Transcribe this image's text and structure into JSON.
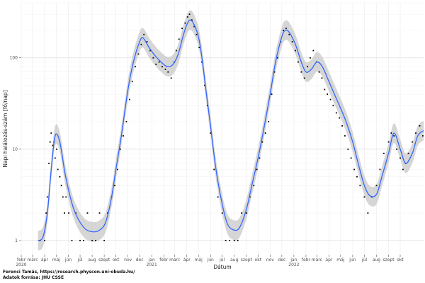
{
  "caption": {
    "author": "Ferenci Tamás, https://research.physcon.uni-obuda.hu/",
    "source": "Adatok forrása: JHU CSSE"
  },
  "chart_data": {
    "type": "scatter",
    "xlabel": "Dátum",
    "ylabel": "Napi halálozás-szám [fő/nap]",
    "yscale": "log",
    "ylim": [
      0.7,
      400
    ],
    "xlim": [
      "2020-02-01",
      "2022-11-30"
    ],
    "grid": true,
    "y_ticks": [
      1,
      10,
      100
    ],
    "x_ticks": [
      {
        "date": "2020-02-01",
        "label": "febr",
        "year": "2020"
      },
      {
        "date": "2020-03-01",
        "label": "márc"
      },
      {
        "date": "2020-04-01",
        "label": "ápr"
      },
      {
        "date": "2020-05-01",
        "label": "máj"
      },
      {
        "date": "2020-06-01",
        "label": "jún"
      },
      {
        "date": "2020-07-01",
        "label": "júl"
      },
      {
        "date": "2020-08-01",
        "label": "aug"
      },
      {
        "date": "2020-09-01",
        "label": "szept"
      },
      {
        "date": "2020-10-01",
        "label": "okt"
      },
      {
        "date": "2020-11-01",
        "label": "nov"
      },
      {
        "date": "2020-12-01",
        "label": "dec"
      },
      {
        "date": "2021-01-01",
        "label": "jan",
        "year": "2021"
      },
      {
        "date": "2021-02-01",
        "label": "febr"
      },
      {
        "date": "2021-03-01",
        "label": "márc"
      },
      {
        "date": "2021-04-01",
        "label": "ápr"
      },
      {
        "date": "2021-05-01",
        "label": "máj"
      },
      {
        "date": "2021-06-01",
        "label": "jún"
      },
      {
        "date": "2021-07-01",
        "label": "júl"
      },
      {
        "date": "2021-08-01",
        "label": "aug"
      },
      {
        "date": "2021-09-01",
        "label": "szept"
      },
      {
        "date": "2021-10-01",
        "label": "okt"
      },
      {
        "date": "2021-11-01",
        "label": "nov"
      },
      {
        "date": "2021-12-01",
        "label": "dec"
      },
      {
        "date": "2022-01-01",
        "label": "jan",
        "year": "2022"
      },
      {
        "date": "2022-02-01",
        "label": "febr"
      },
      {
        "date": "2022-03-01",
        "label": "márc"
      },
      {
        "date": "2022-04-01",
        "label": "ápr"
      },
      {
        "date": "2022-05-01",
        "label": "máj"
      },
      {
        "date": "2022-06-01",
        "label": "jún"
      },
      {
        "date": "2022-07-01",
        "label": "júl"
      },
      {
        "date": "2022-08-01",
        "label": "aug"
      },
      {
        "date": "2022-09-01",
        "label": "szept"
      },
      {
        "date": "2022-10-01",
        "label": "okt"
      }
    ],
    "trend": {
      "x": [
        "2020-03-15",
        "2020-03-28",
        "2020-04-08",
        "2020-04-18",
        "2020-04-28",
        "2020-05-10",
        "2020-05-25",
        "2020-06-15",
        "2020-07-10",
        "2020-08-01",
        "2020-08-20",
        "2020-09-05",
        "2020-09-20",
        "2020-10-01",
        "2020-10-15",
        "2020-11-01",
        "2020-11-15",
        "2020-12-01",
        "2020-12-10",
        "2020-12-25",
        "2021-01-10",
        "2021-01-25",
        "2021-02-10",
        "2021-02-25",
        "2021-03-10",
        "2021-03-22",
        "2021-04-01",
        "2021-04-10",
        "2021-04-20",
        "2021-05-01",
        "2021-05-10",
        "2021-05-20",
        "2021-06-01",
        "2021-06-15",
        "2021-07-01",
        "2021-07-15",
        "2021-08-01",
        "2021-08-15",
        "2021-09-01",
        "2021-09-15",
        "2021-10-01",
        "2021-10-15",
        "2021-11-01",
        "2021-11-15",
        "2021-12-01",
        "2021-12-10",
        "2021-12-20",
        "2022-01-05",
        "2022-01-20",
        "2022-02-01",
        "2022-02-15",
        "2022-03-01",
        "2022-03-15",
        "2022-04-01",
        "2022-04-15",
        "2022-05-01",
        "2022-05-15",
        "2022-06-01",
        "2022-06-15",
        "2022-07-01",
        "2022-07-15",
        "2022-08-01",
        "2022-08-15",
        "2022-09-01",
        "2022-09-15",
        "2022-10-01",
        "2022-10-15",
        "2022-11-01",
        "2022-11-15",
        "2022-11-30"
      ],
      "y": [
        1,
        1.1,
        2,
        6,
        14,
        12,
        5,
        2.2,
        1.4,
        1.25,
        1.3,
        1.6,
        3,
        6,
        14,
        45,
        90,
        150,
        165,
        130,
        105,
        90,
        80,
        85,
        110,
        170,
        230,
        260,
        230,
        170,
        100,
        45,
        18,
        6,
        2.5,
        1.5,
        1.3,
        1.4,
        2.2,
        4,
        8,
        16,
        40,
        90,
        170,
        200,
        190,
        140,
        90,
        70,
        75,
        90,
        80,
        55,
        40,
        28,
        20,
        12,
        7,
        4,
        3.1,
        3.2,
        5,
        9,
        15,
        10,
        7,
        9,
        14,
        16
      ]
    },
    "points": {
      "x": [
        "2020-03-20",
        "2020-04-01",
        "2020-04-05",
        "2020-04-08",
        "2020-04-12",
        "2020-04-15",
        "2020-04-18",
        "2020-04-22",
        "2020-04-25",
        "2020-04-28",
        "2020-05-02",
        "2020-05-05",
        "2020-05-10",
        "2020-05-14",
        "2020-05-18",
        "2020-05-22",
        "2020-05-26",
        "2020-06-02",
        "2020-06-10",
        "2020-06-20",
        "2020-07-01",
        "2020-07-10",
        "2020-07-20",
        "2020-08-01",
        "2020-08-10",
        "2020-08-20",
        "2020-09-01",
        "2020-09-10",
        "2020-09-20",
        "2020-09-28",
        "2020-10-05",
        "2020-10-12",
        "2020-10-20",
        "2020-10-28",
        "2020-11-05",
        "2020-11-12",
        "2020-11-20",
        "2020-11-28",
        "2020-12-05",
        "2020-12-12",
        "2020-12-20",
        "2020-12-28",
        "2021-01-05",
        "2021-01-12",
        "2021-01-20",
        "2021-01-28",
        "2021-02-05",
        "2021-02-12",
        "2021-02-20",
        "2021-02-28",
        "2021-03-05",
        "2021-03-12",
        "2021-03-20",
        "2021-03-28",
        "2021-04-03",
        "2021-04-08",
        "2021-04-14",
        "2021-04-20",
        "2021-04-26",
        "2021-05-03",
        "2021-05-10",
        "2021-05-17",
        "2021-05-24",
        "2021-06-01",
        "2021-06-10",
        "2021-06-20",
        "2021-07-01",
        "2021-07-10",
        "2021-07-20",
        "2021-08-01",
        "2021-08-10",
        "2021-08-20",
        "2021-09-01",
        "2021-09-10",
        "2021-09-20",
        "2021-09-28",
        "2021-10-05",
        "2021-10-12",
        "2021-10-20",
        "2021-10-28",
        "2021-11-05",
        "2021-11-12",
        "2021-11-20",
        "2021-11-28",
        "2021-12-05",
        "2021-12-12",
        "2021-12-20",
        "2021-12-28",
        "2022-01-05",
        "2022-01-12",
        "2022-01-20",
        "2022-01-28",
        "2022-02-05",
        "2022-02-12",
        "2022-02-20",
        "2022-02-28",
        "2022-03-07",
        "2022-03-14",
        "2022-03-21",
        "2022-03-28",
        "2022-04-05",
        "2022-04-12",
        "2022-04-20",
        "2022-04-28",
        "2022-05-05",
        "2022-05-12",
        "2022-05-20",
        "2022-05-28",
        "2022-06-05",
        "2022-06-12",
        "2022-06-20",
        "2022-07-01",
        "2022-07-10",
        "2022-07-20",
        "2022-08-01",
        "2022-08-10",
        "2022-08-20",
        "2022-09-01",
        "2022-09-08",
        "2022-09-15",
        "2022-09-22",
        "2022-10-01",
        "2022-10-08",
        "2022-10-15",
        "2022-10-22",
        "2022-11-01",
        "2022-11-10",
        "2022-11-20",
        "2022-11-28"
      ],
      "y": [
        1,
        1,
        2,
        3,
        7,
        12,
        15,
        11,
        12,
        8,
        10,
        6,
        5,
        4,
        3,
        2,
        3,
        2,
        1,
        2,
        1,
        1,
        2,
        1,
        1,
        2,
        1,
        2,
        3,
        4,
        6,
        10,
        14,
        20,
        35,
        55,
        80,
        110,
        140,
        180,
        150,
        120,
        100,
        85,
        90,
        80,
        75,
        70,
        60,
        90,
        120,
        160,
        210,
        240,
        280,
        300,
        260,
        220,
        180,
        130,
        90,
        50,
        30,
        15,
        6,
        3,
        2,
        1,
        1,
        1,
        1,
        2,
        2,
        3,
        4,
        6,
        8,
        12,
        15,
        20,
        40,
        70,
        100,
        150,
        200,
        210,
        180,
        150,
        120,
        90,
        70,
        60,
        80,
        100,
        120,
        90,
        70,
        60,
        45,
        40,
        35,
        30,
        25,
        22,
        18,
        14,
        10,
        8,
        6,
        5,
        4,
        3,
        2,
        3,
        4,
        6,
        9,
        12,
        15,
        14,
        10,
        8,
        6,
        7,
        9,
        12,
        15,
        18,
        14
      ]
    }
  }
}
